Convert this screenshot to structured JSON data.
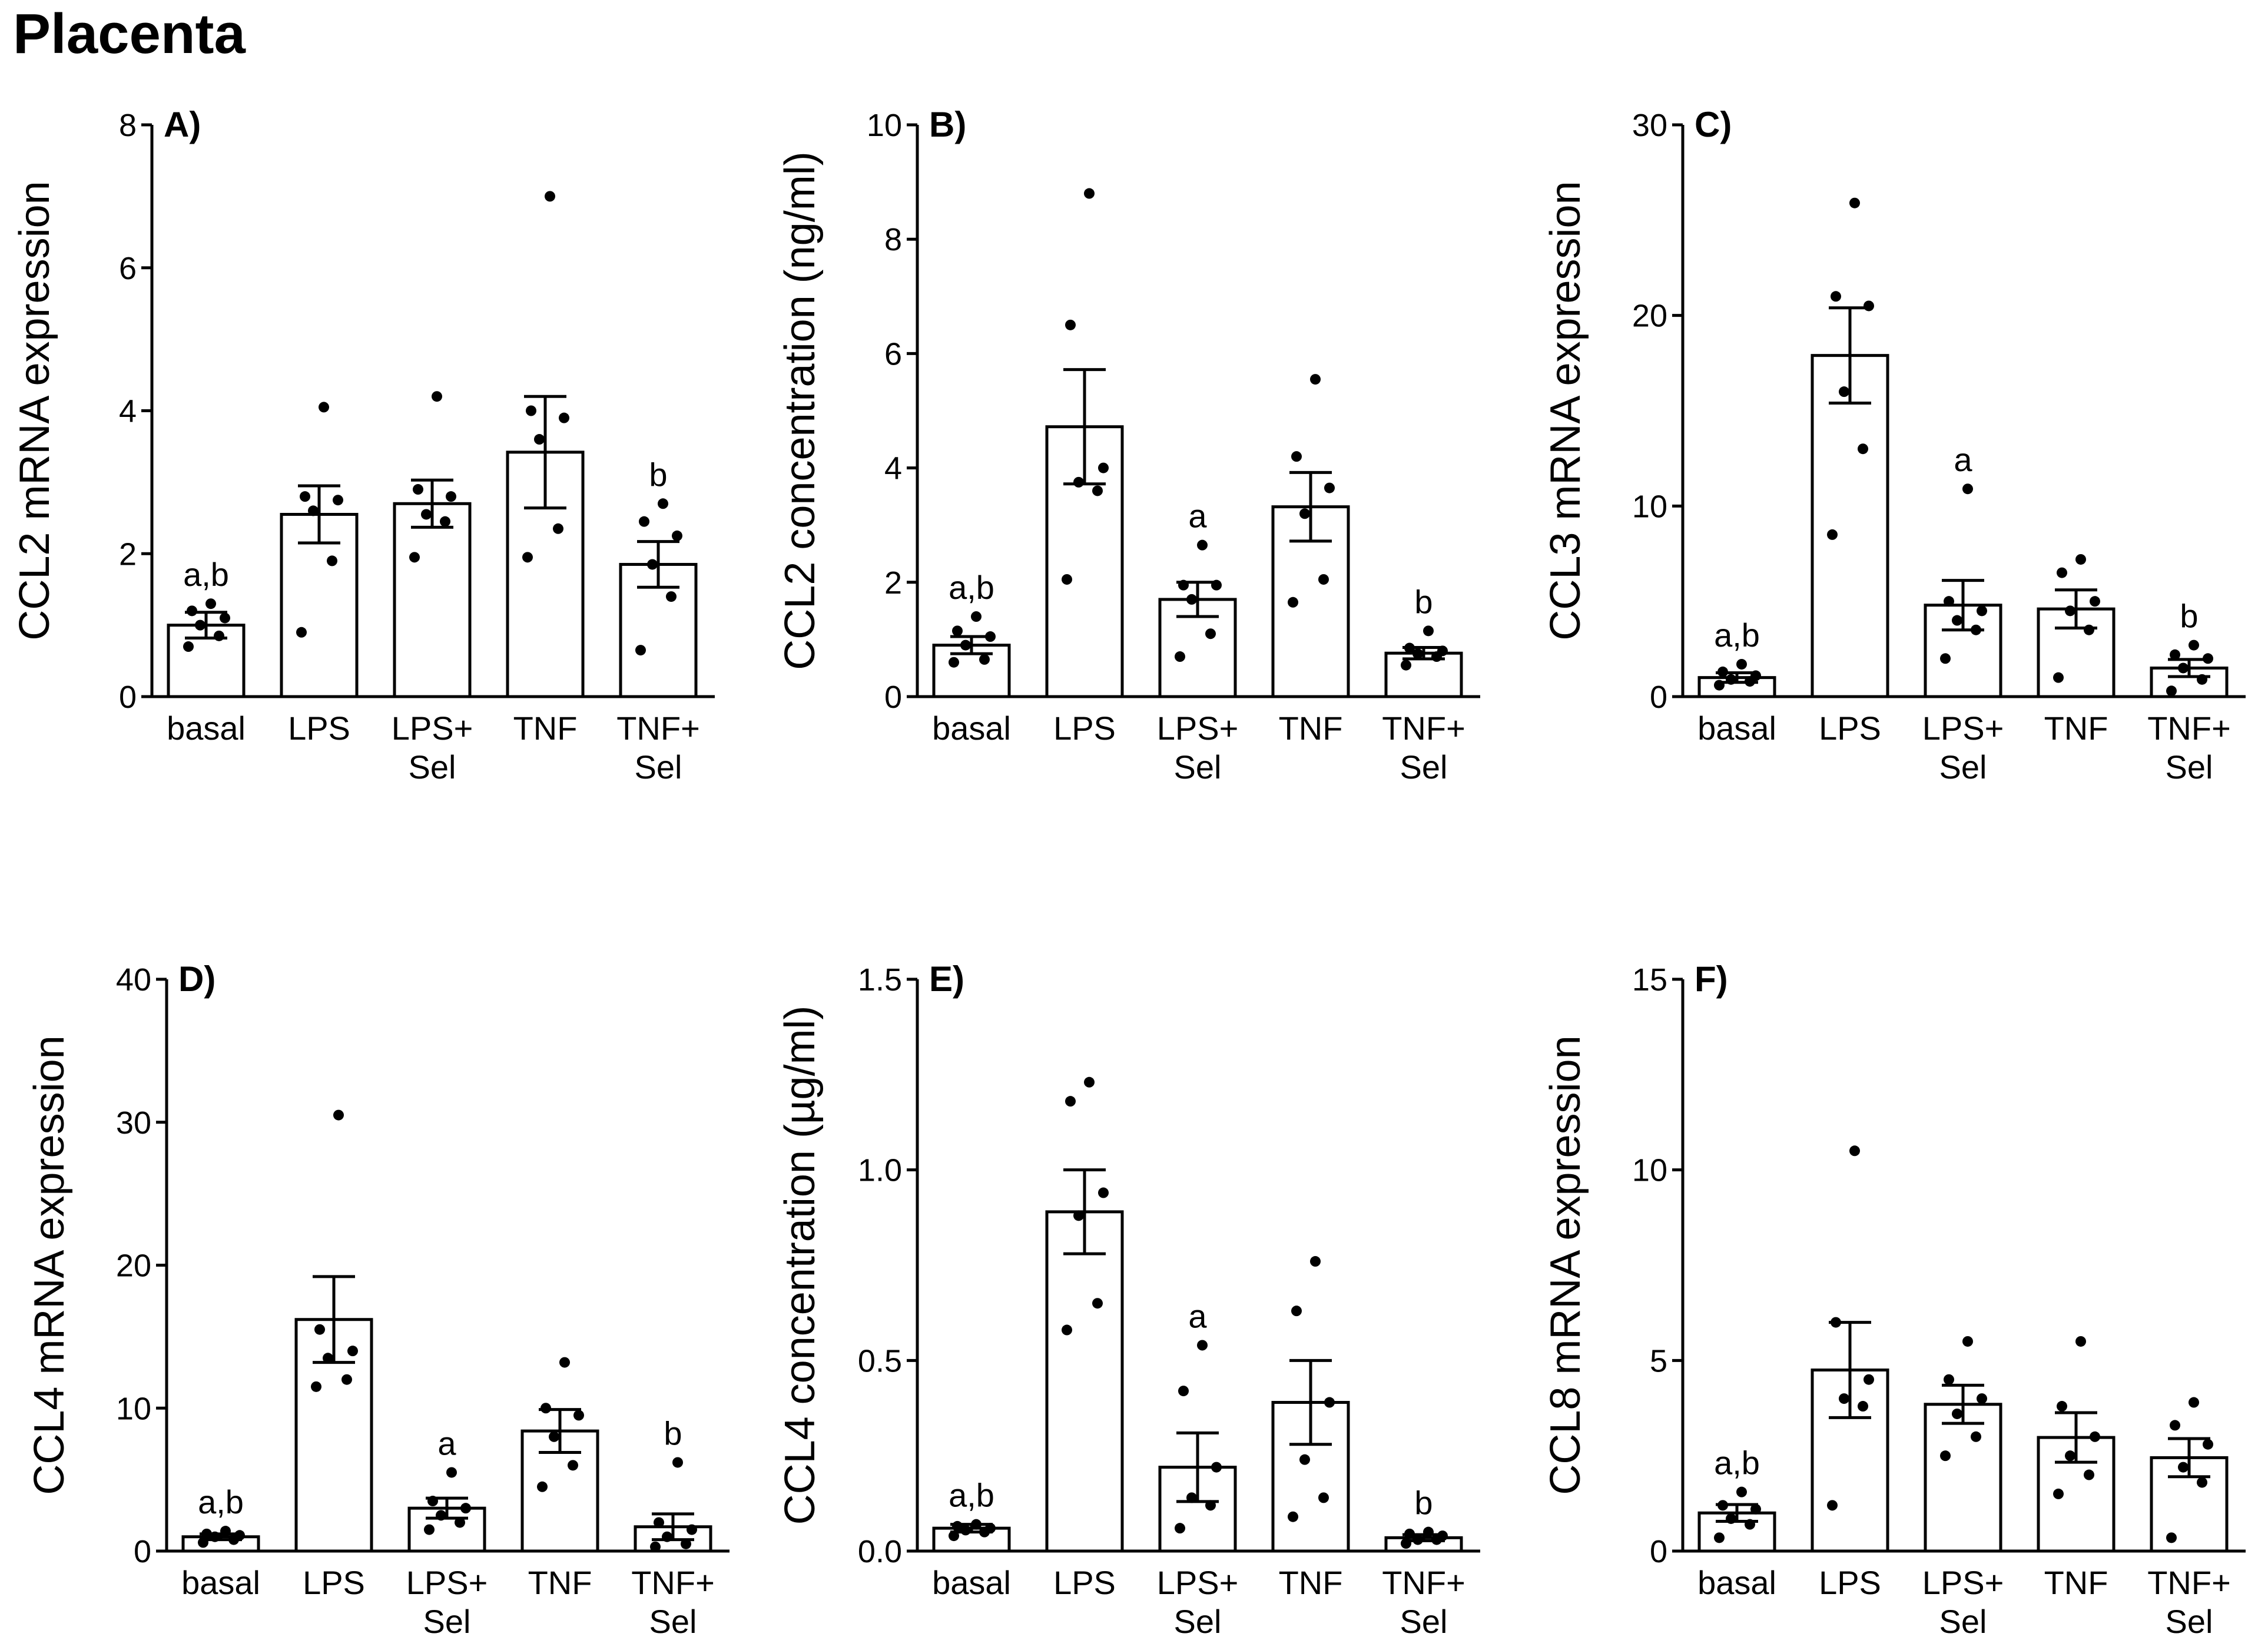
{
  "page_title": "Placenta",
  "style": {
    "bar_fill": "#ffffff",
    "stroke": "#000000",
    "point_color": "#000000"
  },
  "chart_data": [
    {
      "id": "A",
      "panel_label": "A)",
      "type": "bar",
      "ylabel": "CCL2 mRNA expression",
      "ylim": [
        0,
        8
      ],
      "yticks": [
        0,
        2,
        4,
        6,
        8
      ],
      "tick_labels": [
        "0",
        "2",
        "4",
        "6",
        "8"
      ],
      "categories": [
        [
          "basal"
        ],
        [
          "LPS"
        ],
        [
          "LPS+",
          "Sel"
        ],
        [
          "TNF"
        ],
        [
          "TNF+",
          "Sel"
        ]
      ],
      "values": [
        1.0,
        2.55,
        2.7,
        3.42,
        1.85
      ],
      "sem": [
        0.18,
        0.4,
        0.33,
        0.78,
        0.32
      ],
      "points": [
        [
          0.7,
          0.85,
          1.0,
          1.1,
          1.2,
          1.3
        ],
        [
          0.9,
          1.9,
          2.6,
          2.75,
          2.8,
          4.05
        ],
        [
          1.95,
          2.45,
          2.55,
          2.8,
          2.9,
          4.2
        ],
        [
          1.95,
          2.35,
          3.6,
          3.9,
          4.0,
          7.0
        ],
        [
          0.65,
          1.4,
          1.85,
          2.25,
          2.45,
          2.7
        ]
      ],
      "significance": [
        "a,b",
        "",
        "",
        "",
        "b"
      ],
      "grid": false
    },
    {
      "id": "B",
      "panel_label": "B)",
      "type": "bar",
      "ylabel": "CCL2 concentration (ng/ml)",
      "ylim": [
        0,
        10
      ],
      "yticks": [
        0,
        2,
        4,
        6,
        8,
        10
      ],
      "tick_labels": [
        "0",
        "2",
        "4",
        "6",
        "8",
        "10"
      ],
      "categories": [
        [
          "basal"
        ],
        [
          "LPS"
        ],
        [
          "LPS+",
          "Sel"
        ],
        [
          "TNF"
        ],
        [
          "TNF+",
          "Sel"
        ]
      ],
      "values": [
        0.9,
        4.72,
        1.7,
        3.32,
        0.76
      ],
      "sem": [
        0.15,
        1.0,
        0.3,
        0.6,
        0.1
      ],
      "points": [
        [
          0.6,
          0.65,
          0.9,
          1.05,
          1.15,
          1.4
        ],
        [
          2.05,
          3.6,
          3.75,
          4.0,
          6.5,
          8.8
        ],
        [
          0.7,
          1.1,
          1.7,
          1.95,
          1.95,
          2.65
        ],
        [
          1.65,
          2.05,
          3.2,
          3.65,
          4.2,
          5.55
        ],
        [
          0.55,
          0.7,
          0.75,
          0.8,
          0.85,
          1.15
        ]
      ],
      "significance": [
        "a,b",
        "",
        "a",
        "",
        "b"
      ],
      "grid": false
    },
    {
      "id": "C",
      "panel_label": "C)",
      "type": "bar",
      "ylabel": "CCL3 mRNA expression",
      "ylim": [
        0,
        30
      ],
      "yticks": [
        0,
        10,
        20,
        30
      ],
      "tick_labels": [
        "0",
        "10",
        "20",
        "30"
      ],
      "categories": [
        [
          "basal"
        ],
        [
          "LPS"
        ],
        [
          "LPS+",
          "Sel"
        ],
        [
          "TNF"
        ],
        [
          "TNF+",
          "Sel"
        ]
      ],
      "values": [
        1.0,
        17.9,
        4.8,
        4.6,
        1.5
      ],
      "sem": [
        0.25,
        2.5,
        1.3,
        1.0,
        0.45
      ],
      "points": [
        [
          0.6,
          0.8,
          0.9,
          1.1,
          1.3,
          1.7
        ],
        [
          8.5,
          13.0,
          16.0,
          20.5,
          21.0,
          25.9
        ],
        [
          2.0,
          3.5,
          4.0,
          4.5,
          5.0,
          10.9
        ],
        [
          1.0,
          3.5,
          4.5,
          5.0,
          6.5,
          7.2
        ],
        [
          0.3,
          0.9,
          1.5,
          2.0,
          2.2,
          2.7
        ]
      ],
      "significance": [
        "a,b",
        "",
        "a",
        "",
        "b"
      ],
      "grid": false
    },
    {
      "id": "D",
      "panel_label": "D)",
      "type": "bar",
      "ylabel": "CCL4 mRNA expression",
      "ylim": [
        0,
        40
      ],
      "yticks": [
        0,
        10,
        20,
        30,
        40
      ],
      "tick_labels": [
        "0",
        "10",
        "20",
        "30",
        "40"
      ],
      "categories": [
        [
          "basal"
        ],
        [
          "LPS"
        ],
        [
          "LPS+",
          "Sel"
        ],
        [
          "TNF"
        ],
        [
          "TNF+",
          "Sel"
        ]
      ],
      "values": [
        1.0,
        16.2,
        3.0,
        8.4,
        1.7
      ],
      "sem": [
        0.2,
        3.0,
        0.7,
        1.5,
        0.9
      ],
      "points": [
        [
          0.6,
          0.8,
          1.0,
          1.1,
          1.2,
          1.4
        ],
        [
          11.5,
          12.0,
          13.5,
          14.0,
          15.5,
          30.5
        ],
        [
          1.5,
          2.0,
          2.5,
          3.0,
          3.5,
          5.5
        ],
        [
          4.5,
          6.0,
          8.0,
          9.5,
          10.0,
          13.2
        ],
        [
          0.3,
          0.5,
          1.0,
          1.5,
          2.0,
          6.2
        ]
      ],
      "significance": [
        "a,b",
        "",
        "a",
        "",
        "b"
      ],
      "grid": false
    },
    {
      "id": "E",
      "panel_label": "E)",
      "type": "bar",
      "ylabel": "CCL4 concentration (µg/ml)",
      "ylim": [
        0,
        1.5
      ],
      "yticks": [
        0,
        0.5,
        1.0,
        1.5
      ],
      "tick_labels": [
        "0.0",
        "0.5",
        "1.0",
        "1.5"
      ],
      "categories": [
        [
          "basal"
        ],
        [
          "LPS"
        ],
        [
          "LPS+",
          "Sel"
        ],
        [
          "TNF"
        ],
        [
          "TNF+",
          "Sel"
        ]
      ],
      "values": [
        0.06,
        0.89,
        0.22,
        0.39,
        0.035
      ],
      "sem": [
        0.01,
        0.11,
        0.09,
        0.11,
        0.008
      ],
      "points": [
        [
          0.04,
          0.05,
          0.055,
          0.06,
          0.065,
          0.07
        ],
        [
          0.58,
          0.65,
          0.88,
          0.94,
          1.18,
          1.23
        ],
        [
          0.06,
          0.12,
          0.14,
          0.22,
          0.42,
          0.54
        ],
        [
          0.09,
          0.14,
          0.24,
          0.39,
          0.63,
          0.76
        ],
        [
          0.02,
          0.03,
          0.03,
          0.04,
          0.045,
          0.05
        ]
      ],
      "significance": [
        "a,b",
        "",
        "a",
        "",
        "b"
      ],
      "grid": false
    },
    {
      "id": "F",
      "panel_label": "F)",
      "type": "bar",
      "ylabel": "CCL8 mRNA expression",
      "ylim": [
        0,
        15
      ],
      "yticks": [
        0,
        5,
        10,
        15
      ],
      "tick_labels": [
        "0",
        "5",
        "10",
        "15"
      ],
      "categories": [
        [
          "basal"
        ],
        [
          "LPS"
        ],
        [
          "LPS+",
          "Sel"
        ],
        [
          "TNF"
        ],
        [
          "TNF+",
          "Sel"
        ]
      ],
      "values": [
        1.0,
        4.75,
        3.85,
        2.98,
        2.45
      ],
      "sem": [
        0.22,
        1.25,
        0.5,
        0.65,
        0.5
      ],
      "points": [
        [
          0.35,
          0.7,
          0.85,
          1.1,
          1.2,
          1.55
        ],
        [
          1.2,
          3.8,
          4.0,
          4.5,
          6.0,
          10.5
        ],
        [
          2.5,
          3.0,
          3.6,
          4.0,
          4.5,
          5.5
        ],
        [
          1.5,
          2.0,
          2.5,
          3.0,
          3.8,
          5.5
        ],
        [
          0.35,
          1.8,
          2.2,
          2.8,
          3.3,
          3.9
        ]
      ],
      "significance": [
        "a,b",
        "",
        "",
        "",
        ""
      ],
      "grid": false
    }
  ]
}
